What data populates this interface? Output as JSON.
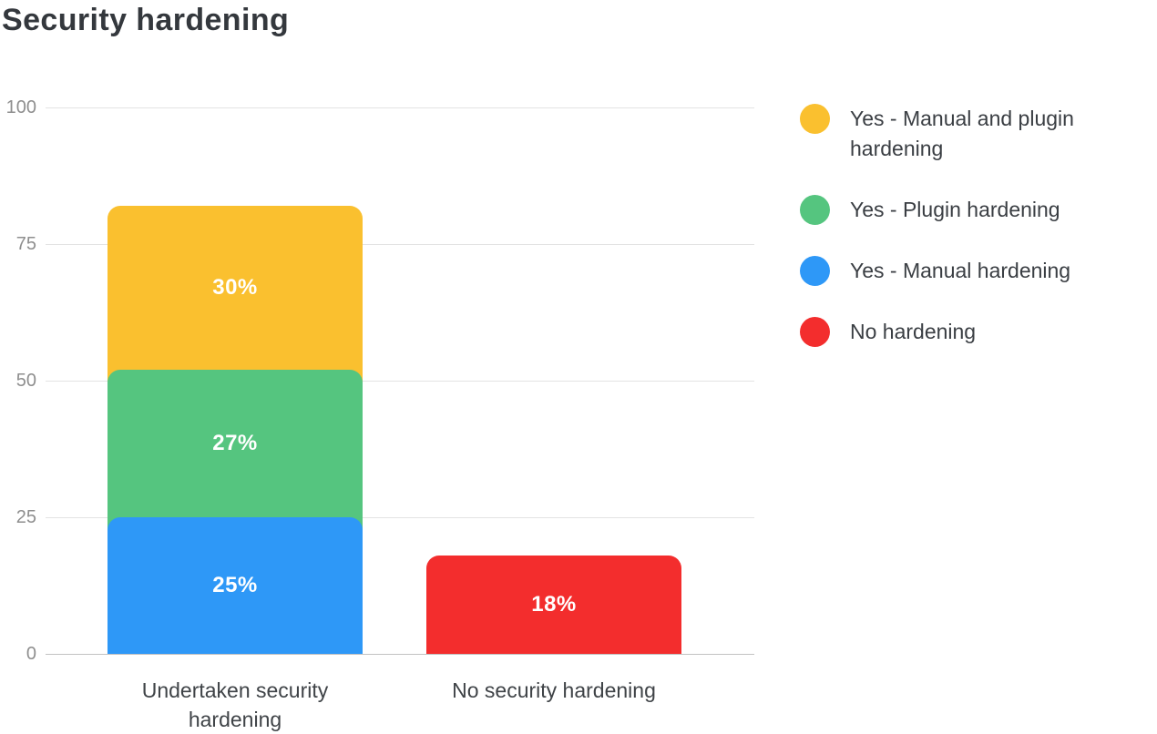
{
  "title": "Security hardening",
  "chart_data": {
    "type": "bar",
    "stacked": true,
    "title": "Security hardening",
    "categories": [
      "Undertaken security hardening",
      "No security hardening"
    ],
    "series": [
      {
        "name": "Yes - Manual hardening",
        "color": "#2E98F7",
        "values": [
          25,
          0
        ]
      },
      {
        "name": "Yes - Plugin hardening",
        "color": "#55C57F",
        "values": [
          27,
          0
        ]
      },
      {
        "name": "Yes - Manual and plugin hardening",
        "color": "#FAC02F",
        "values": [
          30,
          0
        ]
      },
      {
        "name": "No hardening",
        "color": "#F32D2D",
        "values": [
          0,
          18
        ]
      }
    ],
    "value_suffix": "%",
    "ylim": [
      0,
      100
    ],
    "yticks": [
      0,
      25,
      50,
      75,
      100
    ],
    "grid": true,
    "legend_position": "right",
    "legend_order": [
      2,
      1,
      0,
      3
    ]
  },
  "colors": {
    "background": "#FFFFFF",
    "title_text": "#34383D",
    "y_axis_label": "#8E8E8E",
    "category_label": "#3F4347",
    "legend_text": "#3A3E43",
    "bar_value_text": "#FFFFFF",
    "gridline": "#E3E3E3",
    "baseline": "#C2C2C2"
  }
}
